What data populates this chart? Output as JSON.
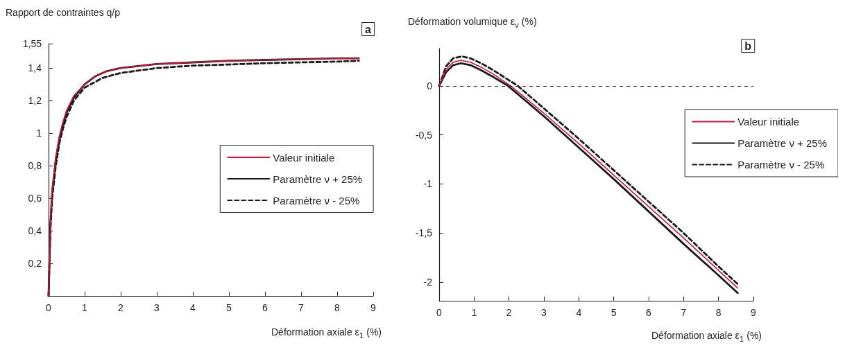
{
  "chart_data": [
    {
      "type": "line",
      "title": "a",
      "ylabel": "Rapport de contraintes q/p",
      "xlabel": "Déformation axiale ε$_{1}$ (%)",
      "xlim": [
        0,
        9
      ],
      "xticks": [
        0,
        1,
        2,
        3,
        4,
        5,
        6,
        7,
        8,
        9
      ],
      "ylim": [
        0,
        1.55
      ],
      "yticks": [
        {
          "value": 0.2,
          "label": "0,2"
        },
        {
          "value": 0.4,
          "label": "0,4"
        },
        {
          "value": 0.6,
          "label": "0,6"
        },
        {
          "value": 0.8,
          "label": "0,8"
        },
        {
          "value": 1,
          "label": "1"
        },
        {
          "value": 1.2,
          "label": "1,2"
        },
        {
          "value": 1.4,
          "label": "1,4"
        },
        {
          "value": 1.55,
          "label": "1,55"
        }
      ],
      "grid": false,
      "legend": "right",
      "marker": "none",
      "series": [
        {
          "name": "Valeur initiale",
          "color": "#c8193c",
          "line_style": "solid",
          "x": [
            0,
            0.05,
            0.1,
            0.2,
            0.3,
            0.4,
            0.5,
            0.7,
            1,
            1.3,
            1.6,
            2,
            3,
            4,
            5,
            6,
            7,
            8,
            8.6
          ],
          "values": [
            0,
            0.45,
            0.65,
            0.85,
            0.98,
            1.07,
            1.14,
            1.23,
            1.3,
            1.35,
            1.38,
            1.4,
            1.425,
            1.435,
            1.445,
            1.45,
            1.455,
            1.46,
            1.46
          ]
        },
        {
          "name": "Paramètre ν + 25%",
          "color": "#1a1a1a",
          "line_style": "solid",
          "x": [
            0,
            0.05,
            0.1,
            0.2,
            0.3,
            0.4,
            0.5,
            0.7,
            1,
            1.3,
            1.6,
            2,
            3,
            4,
            5,
            6,
            7,
            8,
            8.6
          ],
          "values": [
            0,
            0.44,
            0.64,
            0.84,
            0.97,
            1.06,
            1.13,
            1.22,
            1.3,
            1.35,
            1.38,
            1.4,
            1.425,
            1.435,
            1.445,
            1.45,
            1.455,
            1.46,
            1.46
          ]
        },
        {
          "name": "Paramètre ν - 25%",
          "color": "#1a1a1a",
          "line_style": "dashed",
          "x": [
            0,
            0.05,
            0.1,
            0.2,
            0.3,
            0.4,
            0.5,
            0.7,
            1,
            1.5,
            2,
            3,
            4,
            5,
            6,
            7,
            8,
            8.6
          ],
          "values": [
            0,
            0.4,
            0.6,
            0.8,
            0.94,
            1.03,
            1.1,
            1.2,
            1.28,
            1.34,
            1.37,
            1.4,
            1.415,
            1.422,
            1.43,
            1.435,
            1.44,
            1.445
          ]
        }
      ]
    },
    {
      "type": "line",
      "title": "b",
      "ylabel": "Déformation volumique ε$_{v}$ (%)",
      "xlabel": "Déformation axiale ε$_{1}$ (%)",
      "xlim": [
        0,
        9
      ],
      "xticks": [
        0,
        1,
        2,
        3,
        4,
        5,
        6,
        7,
        8,
        9
      ],
      "ylim": [
        -2.19,
        0.38
      ],
      "yticks": [
        {
          "value": 0,
          "label": "0"
        },
        {
          "value": -0.5,
          "label": "-0,5"
        },
        {
          "value": -1,
          "label": "-1"
        },
        {
          "value": -1.5,
          "label": "-1,5"
        },
        {
          "value": -2,
          "label": "-2"
        }
      ],
      "grid": false,
      "legend": "top right",
      "marker": "none",
      "ref_lines": [
        {
          "axis": "y",
          "value": 0,
          "line_style": "dashed",
          "color": "#1a1a1a"
        }
      ],
      "series": [
        {
          "name": "Valeur initiale",
          "color": "#c8193c",
          "line_style": "solid",
          "x": [
            0,
            0.2,
            0.4,
            0.62,
            0.9,
            1.2,
            1.5,
            2.05,
            3,
            4,
            5,
            6,
            7,
            8,
            8.55
          ],
          "values": [
            0,
            0.17,
            0.24,
            0.26,
            0.24,
            0.19,
            0.13,
            0,
            -0.28,
            -0.59,
            -0.91,
            -1.23,
            -1.55,
            -1.88,
            -2.06
          ]
        },
        {
          "name": "Paramètre ν + 25%",
          "color": "#1a1a1a",
          "line_style": "solid",
          "x": [
            0,
            0.2,
            0.4,
            0.62,
            0.9,
            1.2,
            1.5,
            1.97,
            3,
            4,
            5,
            6,
            7,
            8,
            8.55
          ],
          "values": [
            0,
            0.14,
            0.21,
            0.23,
            0.21,
            0.16,
            0.1,
            0,
            -0.31,
            -0.63,
            -0.95,
            -1.28,
            -1.61,
            -1.93,
            -2.11
          ]
        },
        {
          "name": "Paramètre ν - 25%",
          "color": "#1a1a1a",
          "line_style": "dashed",
          "x": [
            0,
            0.2,
            0.4,
            0.65,
            0.9,
            1.2,
            1.5,
            2.25,
            3,
            4,
            5,
            6,
            7,
            8,
            8.55
          ],
          "values": [
            0,
            0.2,
            0.28,
            0.3,
            0.28,
            0.23,
            0.17,
            0,
            -0.23,
            -0.54,
            -0.86,
            -1.18,
            -1.5,
            -1.84,
            -2.02
          ]
        }
      ]
    }
  ]
}
